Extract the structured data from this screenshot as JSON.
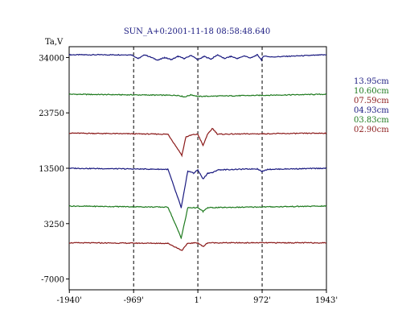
{
  "chart_data": {
    "type": "line",
    "title": "SUN_A+0:2001-11-18 08:58:48.640",
    "ylabel": "Ta,V",
    "xlim": [
      -1943,
      1943
    ],
    "ylim": [
      -9000,
      36000
    ],
    "x_ticks": [
      {
        "value": -1940,
        "label": "-1940'"
      },
      {
        "value": -969,
        "label": "-969'"
      },
      {
        "value": 1,
        "label": "1'"
      },
      {
        "value": 972,
        "label": "972'"
      },
      {
        "value": 1943,
        "label": "1943'"
      }
    ],
    "y_ticks": [
      {
        "value": 34000,
        "label": "34000"
      },
      {
        "value": 23750,
        "label": "23750"
      },
      {
        "value": 13500,
        "label": "13500"
      },
      {
        "value": 3250,
        "label": "3250"
      },
      {
        "value": -7000,
        "label": "-7000"
      }
    ],
    "vertical_gridlines": [
      -969,
      1,
      972
    ],
    "grid": "dashed vertical lines at inner x ticks",
    "legend_position": "right",
    "series": [
      {
        "name": "13.95cm",
        "color": "#1a1a80",
        "baseline": 34500,
        "points": [
          [
            -1943,
            0
          ],
          [
            -1000,
            0
          ],
          [
            -900,
            -700
          ],
          [
            -800,
            0
          ],
          [
            -600,
            -1000
          ],
          [
            -500,
            -500
          ],
          [
            -400,
            -900
          ],
          [
            -300,
            -300
          ],
          [
            -200,
            -700
          ],
          [
            -100,
            -100
          ],
          [
            0,
            -900
          ],
          [
            100,
            -300
          ],
          [
            200,
            -800
          ],
          [
            300,
            0
          ],
          [
            400,
            -700
          ],
          [
            500,
            -300
          ],
          [
            600,
            -700
          ],
          [
            700,
            -200
          ],
          [
            800,
            -600
          ],
          [
            900,
            0
          ],
          [
            960,
            -900
          ],
          [
            1000,
            -200
          ],
          [
            1100,
            -400
          ],
          [
            1943,
            0
          ]
        ]
      },
      {
        "name": "10.60cm",
        "color": "#1e7a1e",
        "baseline": 27200,
        "points": [
          [
            -1943,
            0
          ],
          [
            -300,
            -200
          ],
          [
            -200,
            -500
          ],
          [
            -100,
            -100
          ],
          [
            0,
            -400
          ],
          [
            1943,
            0
          ]
        ]
      },
      {
        "name": "07.59cm",
        "color": "#8b1a1a",
        "baseline": 20000,
        "points": [
          [
            -1943,
            0
          ],
          [
            -450,
            -200
          ],
          [
            -240,
            -4100
          ],
          [
            -180,
            -700
          ],
          [
            -80,
            -300
          ],
          [
            0,
            -200
          ],
          [
            80,
            -2300
          ],
          [
            140,
            -400
          ],
          [
            220,
            900
          ],
          [
            300,
            -200
          ],
          [
            1943,
            0
          ]
        ]
      },
      {
        "name": "04.93cm",
        "color": "#1a1a80",
        "baseline": 13500,
        "points": [
          [
            -1943,
            0
          ],
          [
            -450,
            -200
          ],
          [
            -250,
            -7300
          ],
          [
            -150,
            -500
          ],
          [
            -60,
            -900
          ],
          [
            0,
            -300
          ],
          [
            80,
            -2000
          ],
          [
            150,
            -900
          ],
          [
            230,
            -800
          ],
          [
            300,
            -300
          ],
          [
            900,
            -100
          ],
          [
            972,
            -600
          ],
          [
            1050,
            -200
          ],
          [
            1943,
            0
          ]
        ]
      },
      {
        "name": "03.83cm",
        "color": "#1e7a1e",
        "baseline": 6500,
        "points": [
          [
            -1943,
            0
          ],
          [
            -450,
            -200
          ],
          [
            -250,
            -5900
          ],
          [
            -150,
            -300
          ],
          [
            0,
            -300
          ],
          [
            80,
            -1000
          ],
          [
            150,
            -300
          ],
          [
            1943,
            0
          ]
        ]
      },
      {
        "name": "02.90cm",
        "color": "#8b1a1a",
        "baseline": -300,
        "points": [
          [
            -1943,
            0
          ],
          [
            -450,
            -100
          ],
          [
            -240,
            -1400
          ],
          [
            -150,
            -100
          ],
          [
            0,
            0
          ],
          [
            80,
            -700
          ],
          [
            150,
            0
          ],
          [
            1943,
            0
          ]
        ]
      }
    ]
  }
}
